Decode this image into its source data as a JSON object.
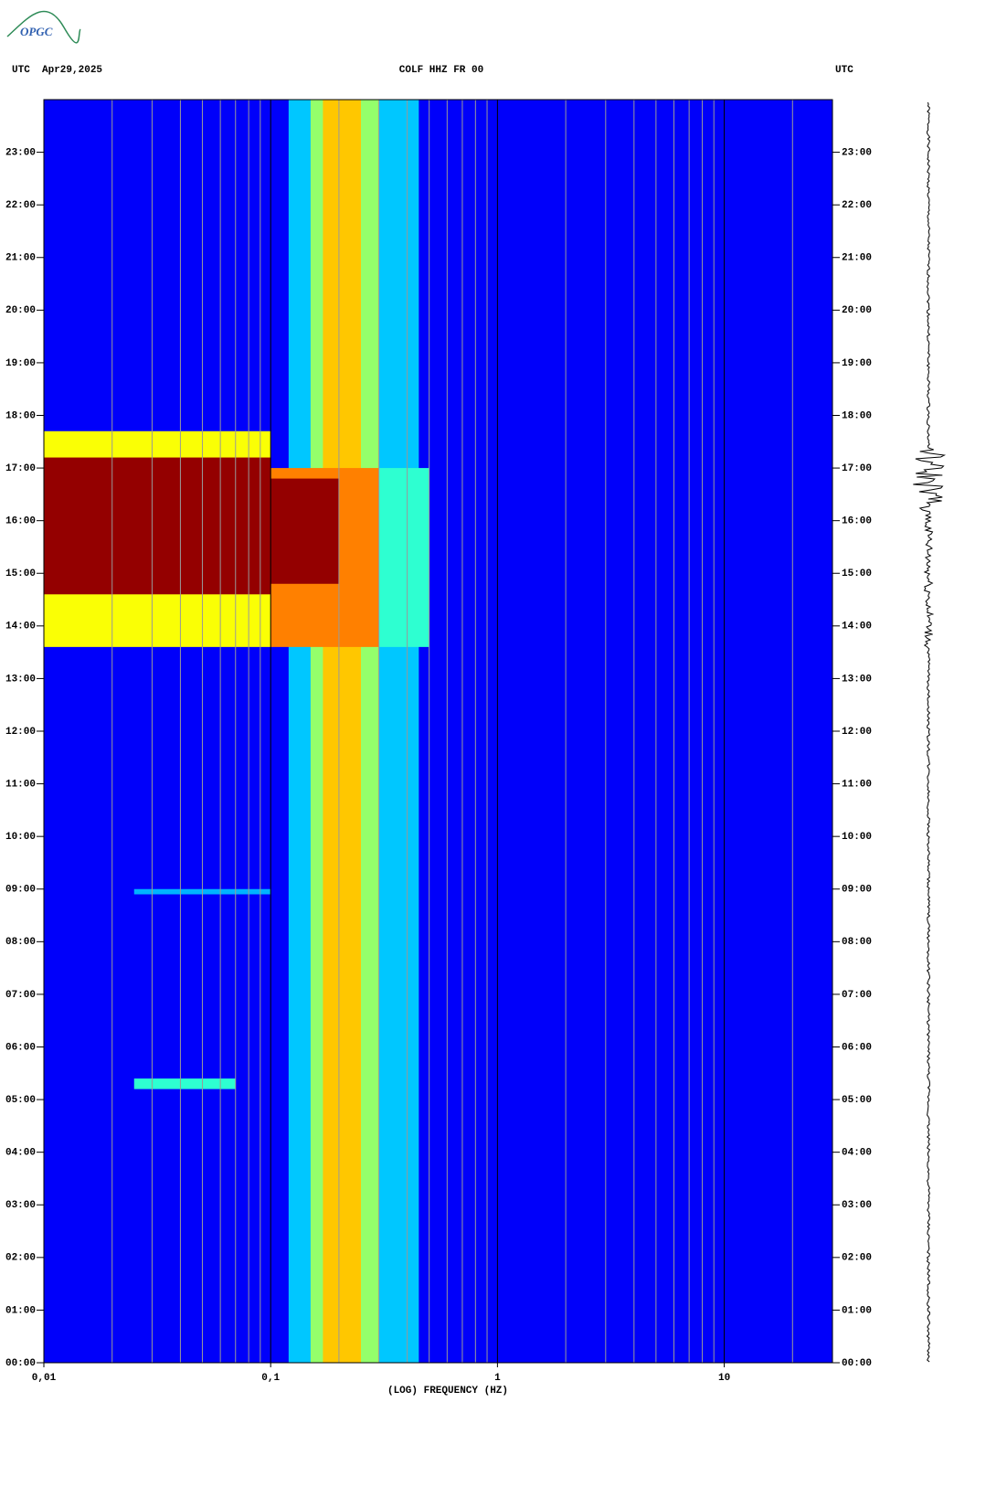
{
  "logo": "OPGC",
  "chart_data": {
    "type": "spectrogram",
    "title": "COLF HHZ FR 00",
    "left_header": "UTC  Apr29,2025",
    "right_header": "UTC",
    "x_label": "(LOG) FREQUENCY (HZ)",
    "log_x": true,
    "xlim": [
      0.01,
      30
    ],
    "xticks": [
      {
        "value": 0.01,
        "label": "0,01"
      },
      {
        "value": 0.1,
        "label": "0,1"
      },
      1,
      10
    ],
    "xgrid": [
      0.02,
      0.03,
      0.04,
      0.05,
      0.06,
      0.07,
      0.08,
      0.09,
      0.2,
      0.3,
      0.4,
      0.5,
      0.6,
      0.7,
      0.8,
      0.9,
      2,
      3,
      4,
      5,
      6,
      7,
      8,
      9,
      20
    ],
    "ylim": [
      0,
      24
    ],
    "yticks": [
      {
        "value": 0,
        "label": "00:00"
      },
      {
        "value": 1,
        "label": "01:00"
      },
      {
        "value": 2,
        "label": "02:00"
      },
      {
        "value": 3,
        "label": "03:00"
      },
      {
        "value": 4,
        "label": "04:00"
      },
      {
        "value": 5,
        "label": "05:00"
      },
      {
        "value": 6,
        "label": "06:00"
      },
      {
        "value": 7,
        "label": "07:00"
      },
      {
        "value": 8,
        "label": "08:00"
      },
      {
        "value": 9,
        "label": "09:00"
      },
      {
        "value": 10,
        "label": "10:00"
      },
      {
        "value": 11,
        "label": "11:00"
      },
      {
        "value": 12,
        "label": "12:00"
      },
      {
        "value": 13,
        "label": "13:00"
      },
      {
        "value": 14,
        "label": "14:00"
      },
      {
        "value": 15,
        "label": "15:00"
      },
      {
        "value": 16,
        "label": "16:00"
      },
      {
        "value": 17,
        "label": "17:00"
      },
      {
        "value": 18,
        "label": "18:00"
      },
      {
        "value": 19,
        "label": "19:00"
      },
      {
        "value": 20,
        "label": "20:00"
      },
      {
        "value": 21,
        "label": "21:00"
      },
      {
        "value": 22,
        "label": "22:00"
      },
      {
        "value": 23,
        "label": "23:00"
      }
    ],
    "regions": [
      {
        "f": [
          0.01,
          30
        ],
        "t": [
          0,
          24
        ],
        "level": 0.12
      },
      {
        "f": [
          0.12,
          0.45
        ],
        "t": [
          0,
          24
        ],
        "level": 0.32
      },
      {
        "f": [
          0.15,
          0.3
        ],
        "t": [
          0,
          24
        ],
        "level": 0.52
      },
      {
        "f": [
          0.17,
          0.25
        ],
        "t": [
          0,
          24
        ],
        "level": 0.68
      },
      {
        "f": [
          0.025,
          0.07
        ],
        "t": [
          5.2,
          5.4
        ],
        "level": 0.42
      },
      {
        "f": [
          0.025,
          0.1
        ],
        "t": [
          8.9,
          9.0
        ],
        "level": 0.3
      },
      {
        "f": [
          0.01,
          0.1
        ],
        "t": [
          13.6,
          17.7
        ],
        "level": 0.62
      },
      {
        "f": [
          0.1,
          0.3
        ],
        "t": [
          13.6,
          17.0
        ],
        "level": 0.75
      },
      {
        "f": [
          0.3,
          0.5
        ],
        "t": [
          13.6,
          17.0
        ],
        "level": 0.42
      },
      {
        "f": [
          0.01,
          0.1
        ],
        "t": [
          14.6,
          17.2
        ],
        "level": 0.98
      },
      {
        "f": [
          0.1,
          0.2
        ],
        "t": [
          14.8,
          16.8
        ],
        "level": 0.98
      }
    ]
  }
}
